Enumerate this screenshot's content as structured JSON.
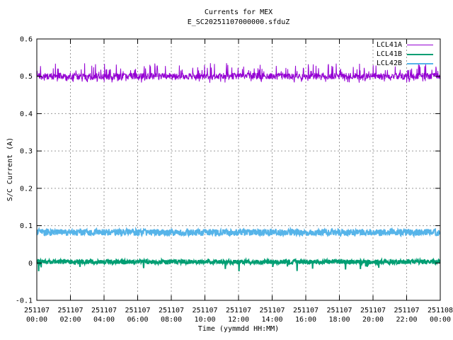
{
  "chart_data": {
    "type": "line",
    "title": "Currents for MEX",
    "subtitle": "E_SC20251107000000.sfduZ",
    "xlabel": "Time (yymmdd HH:MM)",
    "ylabel": "S/C Current (A)",
    "ylim": [
      -0.1,
      0.6
    ],
    "xlim_hours": [
      0,
      24
    ],
    "grid": true,
    "grid_style": "dashed-gray",
    "legend_position": "top-right-inside",
    "yticks": [
      {
        "value": -0.1,
        "label": "-0.1"
      },
      {
        "value": 0,
        "label": "0"
      },
      {
        "value": 0.1,
        "label": "0.1"
      },
      {
        "value": 0.2,
        "label": "0.2"
      },
      {
        "value": 0.3,
        "label": "0.3"
      },
      {
        "value": 0.4,
        "label": "0.4"
      },
      {
        "value": 0.5,
        "label": "0.5"
      },
      {
        "value": 0.6,
        "label": "0.6"
      }
    ],
    "xticks": [
      {
        "hour": 0,
        "date": "251107",
        "time": "00:00"
      },
      {
        "hour": 2,
        "date": "251107",
        "time": "02:00"
      },
      {
        "hour": 4,
        "date": "251107",
        "time": "04:00"
      },
      {
        "hour": 6,
        "date": "251107",
        "time": "06:00"
      },
      {
        "hour": 8,
        "date": "251107",
        "time": "08:00"
      },
      {
        "hour": 10,
        "date": "251107",
        "time": "10:00"
      },
      {
        "hour": 12,
        "date": "251107",
        "time": "12:00"
      },
      {
        "hour": 14,
        "date": "251107",
        "time": "14:00"
      },
      {
        "hour": 16,
        "date": "251107",
        "time": "16:00"
      },
      {
        "hour": 18,
        "date": "251107",
        "time": "18:00"
      },
      {
        "hour": 20,
        "date": "251107",
        "time": "20:00"
      },
      {
        "hour": 22,
        "date": "251107",
        "time": "22:00"
      },
      {
        "hour": 24,
        "date": "251108",
        "time": "00:00"
      }
    ],
    "series": [
      {
        "name": "LCL41A",
        "color": "#9400d3",
        "line_width": 1,
        "baseline": 0.5,
        "band": [
          0.491,
          0.509
        ],
        "spikes_up": {
          "freq": 0.09,
          "reach": [
            0.512,
            0.536
          ]
        },
        "spikes_down": {
          "freq": 0.05,
          "reach": [
            0.482,
            0.492
          ]
        }
      },
      {
        "name": "LCL41B",
        "color": "#009e73",
        "line_width": 2,
        "baseline": 0.003,
        "band": [
          -0.003,
          0.009
        ],
        "spikes_down": {
          "freq": 0.015,
          "reach": [
            -0.023,
            -0.009
          ]
        }
      },
      {
        "name": "LCL42B",
        "color": "#56b4e9",
        "line_width": 2,
        "baseline": 0.082,
        "band": [
          0.073,
          0.091
        ]
      }
    ],
    "points_per_series": 1300,
    "axis_color": "#000000",
    "grid_color": "#9a9a9a",
    "background_color": "#ffffff"
  }
}
